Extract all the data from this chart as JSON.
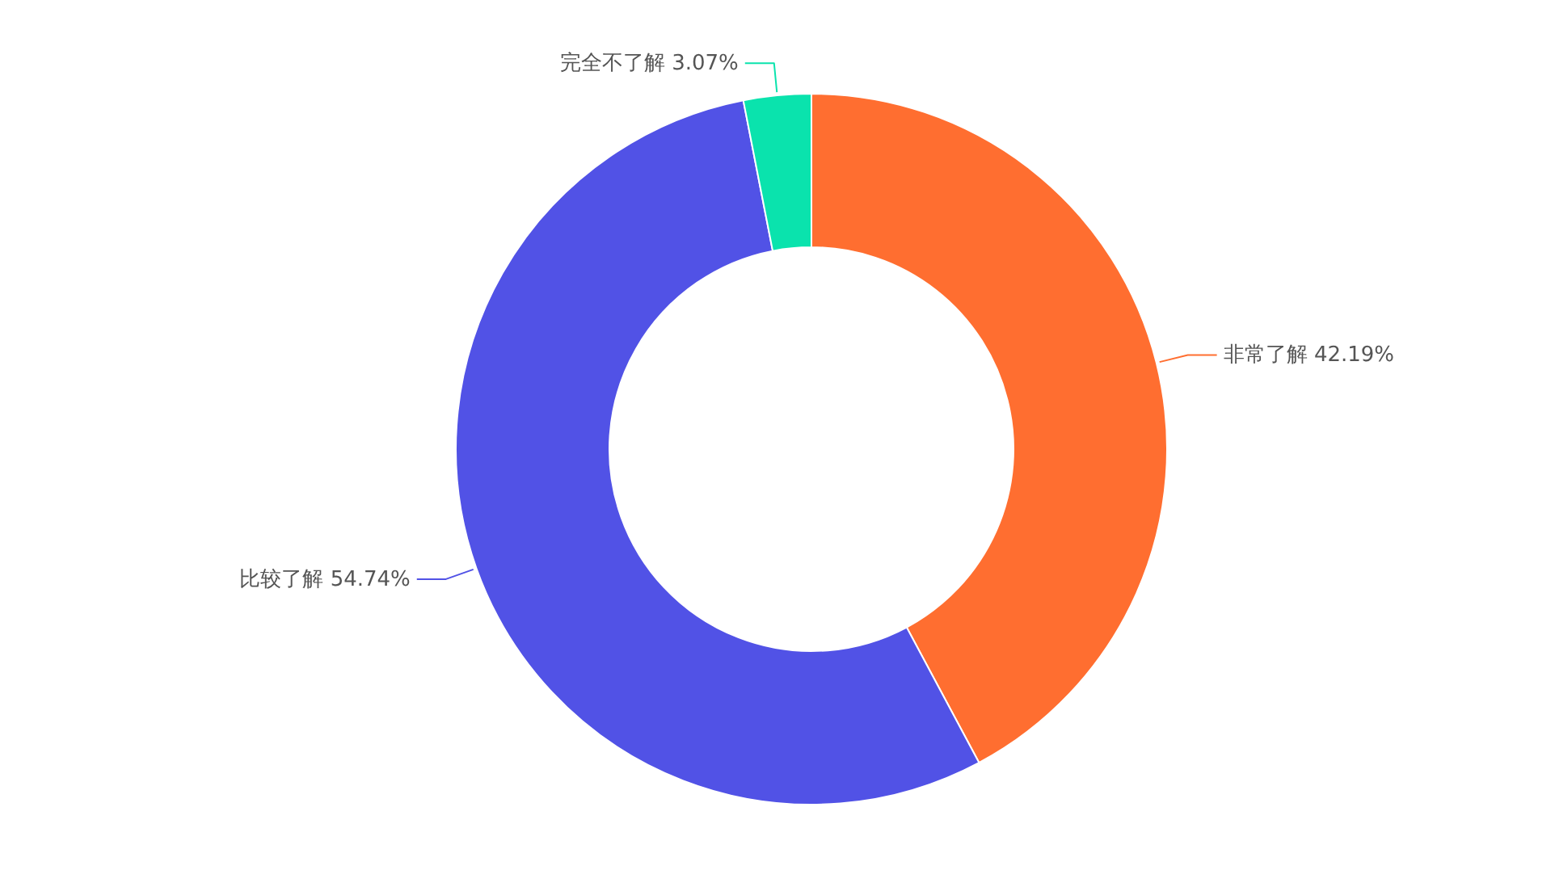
{
  "chart_data": {
    "type": "donut",
    "categories": [
      "非常了解",
      "比较了解",
      "完全不了解"
    ],
    "values": [
      42.19,
      54.74,
      3.07
    ],
    "value_labels": [
      "42.19%",
      "54.74%",
      "3.07%"
    ],
    "colors": [
      "#ff6e30",
      "#5152e6",
      "#0ae3ad"
    ]
  }
}
